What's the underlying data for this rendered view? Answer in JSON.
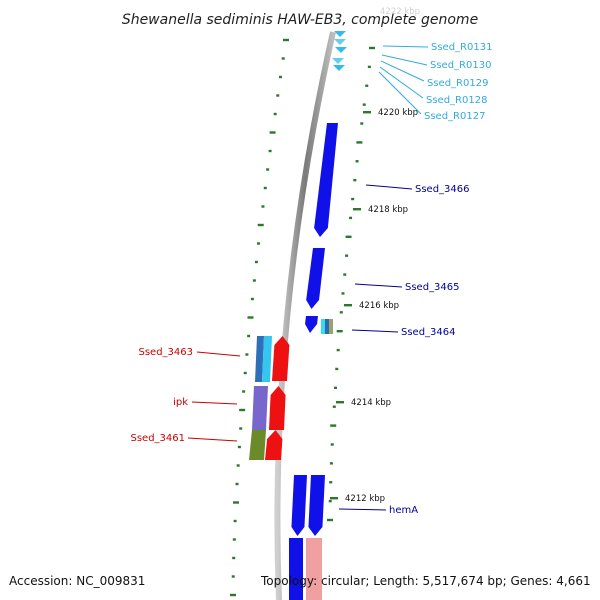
{
  "title": "Shewanella sediminis HAW-EB3, complete genome",
  "footer": {
    "accession": "Accession: NC_009831",
    "summary": "Topology: circular; Length: 5,517,674 bp; Genes: 4,661"
  },
  "ruler_labels": [
    "4220 kbp",
    "4218 kbp",
    "4216 kbp",
    "4214 kbp",
    "4212 kbp"
  ],
  "top_partial_label": "4222 kbp",
  "colors": {
    "forward_cds": "#1010e8",
    "reverse_cds": "#ee1111",
    "rna": "#33bbee",
    "backbone": "#888888",
    "ticks": "#2a7a2a",
    "forward_label": "#000099",
    "reverse_label": "#cc0000",
    "rna_label": "#33aadd"
  },
  "gene_labels": [
    {
      "name": "Ssed_R0131",
      "group": "rna"
    },
    {
      "name": "Ssed_R0130",
      "group": "rna"
    },
    {
      "name": "Ssed_R0129",
      "group": "rna"
    },
    {
      "name": "Ssed_R0128",
      "group": "rna"
    },
    {
      "name": "Ssed_R0127",
      "group": "rna"
    },
    {
      "name": "Ssed_3466",
      "group": "forward"
    },
    {
      "name": "Ssed_3465",
      "group": "forward"
    },
    {
      "name": "Ssed_3464",
      "group": "forward"
    },
    {
      "name": "Ssed_3463",
      "group": "reverse"
    },
    {
      "name": "ipk",
      "group": "reverse"
    },
    {
      "name": "Ssed_3461",
      "group": "reverse"
    },
    {
      "name": "hemA",
      "group": "forward"
    }
  ]
}
